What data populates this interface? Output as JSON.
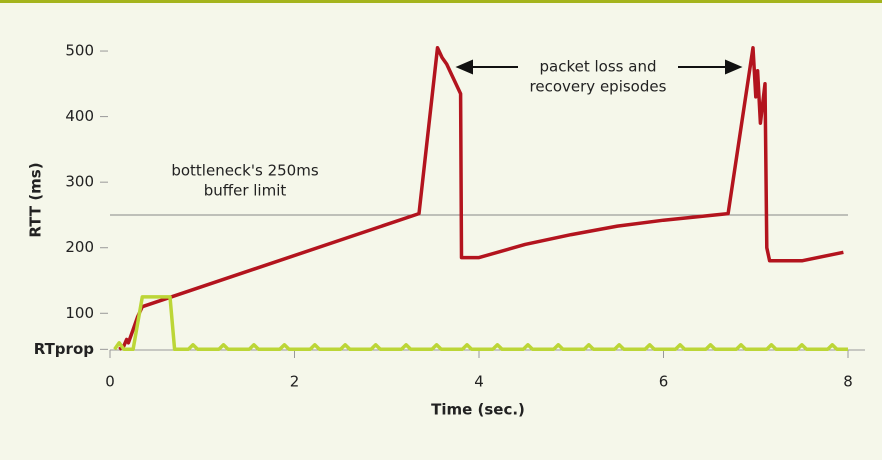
{
  "chart_data": {
    "type": "line",
    "xlabel": "Time (sec.)",
    "ylabel": "RTT (ms)",
    "xlim": [
      0,
      8
    ],
    "xticks": [
      0,
      2,
      4,
      6,
      8
    ],
    "ylim": [
      44,
      560
    ],
    "yticks": [
      {
        "value": 45,
        "label": "RTprop"
      },
      100,
      200,
      300,
      400,
      500
    ],
    "reference_line": 250,
    "annotations": [
      "bottleneck's 250ms",
      "buffer limit",
      "packet loss and",
      "recovery episodes"
    ],
    "series": [
      {
        "color": "#b3141e",
        "x": [
          0.1,
          0.15,
          0.18,
          0.2,
          0.25,
          0.3,
          0.35,
          3.35,
          3.55,
          3.6,
          3.65,
          3.7,
          3.75,
          3.8,
          3.81,
          4.0,
          4.5,
          5.0,
          5.5,
          6.0,
          6.7,
          6.97,
          7.0,
          7.02,
          7.05,
          7.1,
          7.12,
          7.15,
          7.5,
          7.95
        ],
        "values": [
          45,
          50,
          60,
          55,
          75,
          95,
          110,
          252,
          505,
          490,
          480,
          465,
          450,
          435,
          185,
          185,
          205,
          220,
          233,
          242,
          252,
          505,
          430,
          470,
          390,
          450,
          200,
          180,
          180,
          193
        ]
      },
      {
        "color": "#bcd637",
        "x": [
          0.05,
          0.1,
          0.15,
          0.25,
          0.35,
          0.65,
          0.7,
          0.85,
          0.9,
          0.95,
          1.18,
          1.23,
          1.28,
          1.51,
          1.56,
          1.61,
          1.84,
          1.89,
          1.94,
          2.17,
          2.22,
          2.27,
          2.5,
          2.55,
          2.6,
          2.83,
          2.88,
          2.93,
          3.16,
          3.21,
          3.26,
          3.49,
          3.54,
          3.59,
          3.82,
          3.87,
          3.92,
          4.15,
          4.2,
          4.25,
          4.48,
          4.53,
          4.58,
          4.81,
          4.86,
          4.91,
          5.14,
          5.19,
          5.24,
          5.47,
          5.52,
          5.57,
          5.8,
          5.85,
          5.9,
          6.13,
          6.18,
          6.23,
          6.46,
          6.51,
          6.56,
          6.79,
          6.84,
          6.89,
          7.12,
          7.17,
          7.22,
          7.45,
          7.5,
          7.55,
          7.78,
          7.83,
          7.88,
          8.0
        ],
        "values": [
          45,
          55,
          45,
          45,
          125,
          125,
          45,
          45,
          52,
          45,
          45,
          52,
          45,
          45,
          52,
          45,
          45,
          52,
          45,
          45,
          52,
          45,
          45,
          52,
          45,
          45,
          52,
          45,
          45,
          52,
          45,
          45,
          52,
          45,
          45,
          52,
          45,
          45,
          52,
          45,
          45,
          52,
          45,
          45,
          52,
          45,
          45,
          52,
          45,
          45,
          52,
          45,
          45,
          52,
          45,
          45,
          52,
          45,
          45,
          52,
          45,
          45,
          52,
          45,
          45,
          52,
          45,
          45,
          52,
          45,
          45,
          52,
          45,
          45
        ]
      }
    ]
  }
}
